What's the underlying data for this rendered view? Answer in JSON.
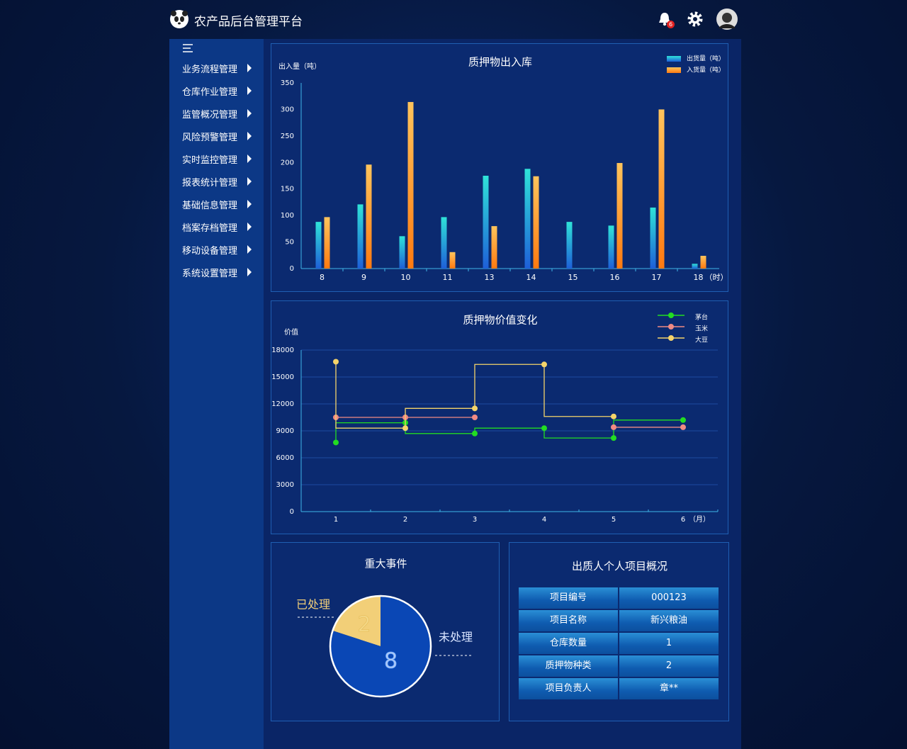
{
  "header": {
    "title": "农产品后台管理平台",
    "badge": 6
  },
  "sidebar": {
    "menu": [
      "业务流程管理",
      "仓库作业管理",
      "监管概况管理",
      "风险预警管理",
      "实时监控管理",
      "报表统计管理",
      "基础信息管理",
      "档案存档管理",
      "移动设备管理",
      "系统设置管理"
    ]
  },
  "chart_data": [
    {
      "type": "bar",
      "title": "质押物出入库",
      "y_label": "出入量（吨）",
      "x_label": "（时）",
      "categories": [
        "8",
        "9",
        "10",
        "11",
        "13",
        "14",
        "15",
        "16",
        "17",
        "18"
      ],
      "series": [
        {
          "name": "出货量（吨）",
          "color": "#2fe3d8",
          "values": [
            88,
            121,
            61,
            97,
            175,
            188,
            88,
            81,
            115,
            9
          ]
        },
        {
          "name": "入货量（吨）",
          "color": "#ffc45c",
          "values": [
            97,
            196,
            314,
            31,
            80,
            174,
            0,
            199,
            300,
            24
          ]
        }
      ],
      "ylim": [
        0,
        350
      ],
      "yticks": [
        0,
        50,
        100,
        150,
        200,
        250,
        300,
        350
      ],
      "grid": false,
      "legend": "top-right"
    },
    {
      "type": "line",
      "step": true,
      "title": "质押物价值变化",
      "y_label": "价值",
      "x_label": "（月）",
      "categories": [
        "1",
        "2",
        "3",
        "4",
        "5",
        "6"
      ],
      "series": [
        {
          "name": "茅台",
          "color": "#22dd22",
          "values": [
            7700,
            9900,
            8700,
            9300,
            8200,
            10200
          ]
        },
        {
          "name": "玉米",
          "color": "#f08a84",
          "values": [
            10500,
            10500,
            10500,
            null,
            9400,
            9400
          ]
        },
        {
          "name": "大豆",
          "color": "#f5d46a",
          "values": [
            16700,
            9300,
            11500,
            16400,
            10600,
            null
          ]
        }
      ],
      "ylim": [
        0,
        18000
      ],
      "yticks": [
        0,
        3000,
        6000,
        9000,
        12000,
        15000,
        18000
      ],
      "grid": true,
      "legend": "top-right"
    },
    {
      "type": "pie",
      "title": "重大事件",
      "categories": [
        "已处理",
        "未处理"
      ],
      "values": [
        2,
        8
      ],
      "colors": [
        "#f2cf78",
        "#0a47b5"
      ]
    }
  ],
  "table": {
    "title": "出质人个人项目概况",
    "rows": [
      [
        "项目编号",
        "000123"
      ],
      [
        "项目名称",
        "新兴粮油"
      ],
      [
        "仓库数量",
        "1"
      ],
      [
        "质押物种类",
        "2"
      ],
      [
        "项目负责人",
        "章**"
      ]
    ]
  }
}
